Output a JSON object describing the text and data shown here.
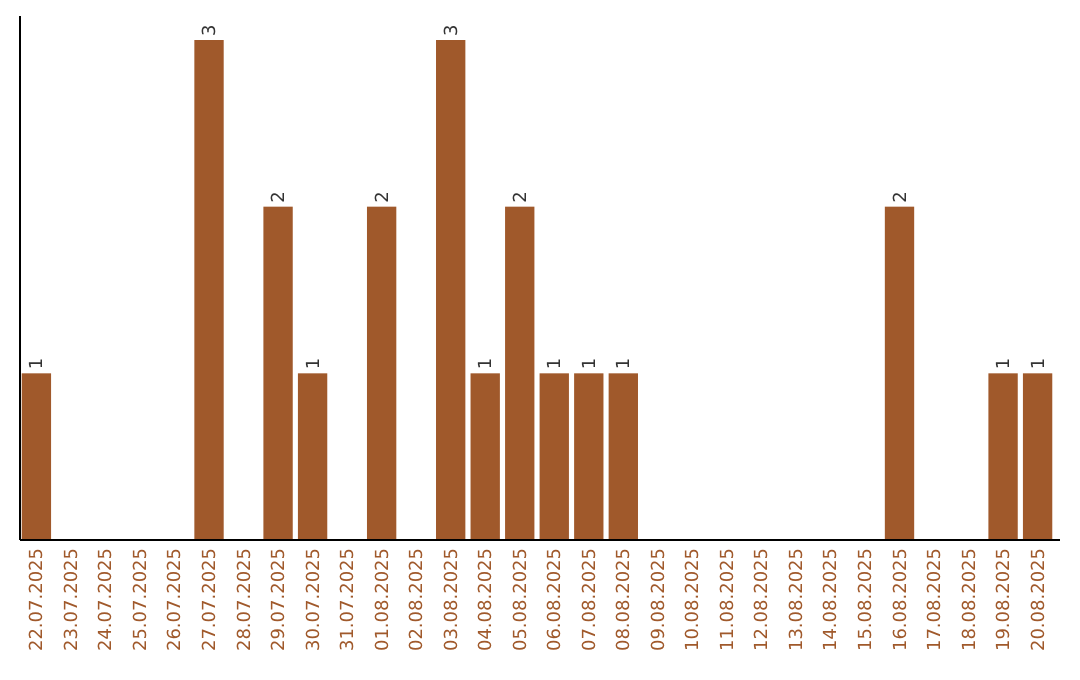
{
  "chart_data": {
    "type": "bar",
    "categories": [
      "22.07.2025",
      "23.07.2025",
      "24.07.2025",
      "25.07.2025",
      "26.07.2025",
      "27.07.2025",
      "28.07.2025",
      "29.07.2025",
      "30.07.2025",
      "31.07.2025",
      "01.08.2025",
      "02.08.2025",
      "03.08.2025",
      "04.08.2025",
      "05.08.2025",
      "06.08.2025",
      "07.08.2025",
      "08.08.2025",
      "09.08.2025",
      "10.08.2025",
      "11.08.2025",
      "12.08.2025",
      "13.08.2025",
      "14.08.2025",
      "15.08.2025",
      "16.08.2025",
      "17.08.2025",
      "18.08.2025",
      "19.08.2025",
      "20.08.2025"
    ],
    "values": [
      1,
      0,
      0,
      0,
      0,
      3,
      0,
      2,
      1,
      0,
      2,
      0,
      3,
      1,
      2,
      1,
      1,
      1,
      0,
      0,
      0,
      0,
      0,
      0,
      0,
      2,
      0,
      0,
      1,
      1
    ],
    "value_labels": [
      "1",
      null,
      null,
      null,
      null,
      "3",
      null,
      "2",
      "1",
      null,
      "2",
      null,
      "3",
      "1",
      "2",
      "1",
      "1",
      "1",
      null,
      null,
      null,
      null,
      null,
      null,
      null,
      "2",
      null,
      null,
      "1",
      "1"
    ],
    "color": "#a0592b"
  }
}
